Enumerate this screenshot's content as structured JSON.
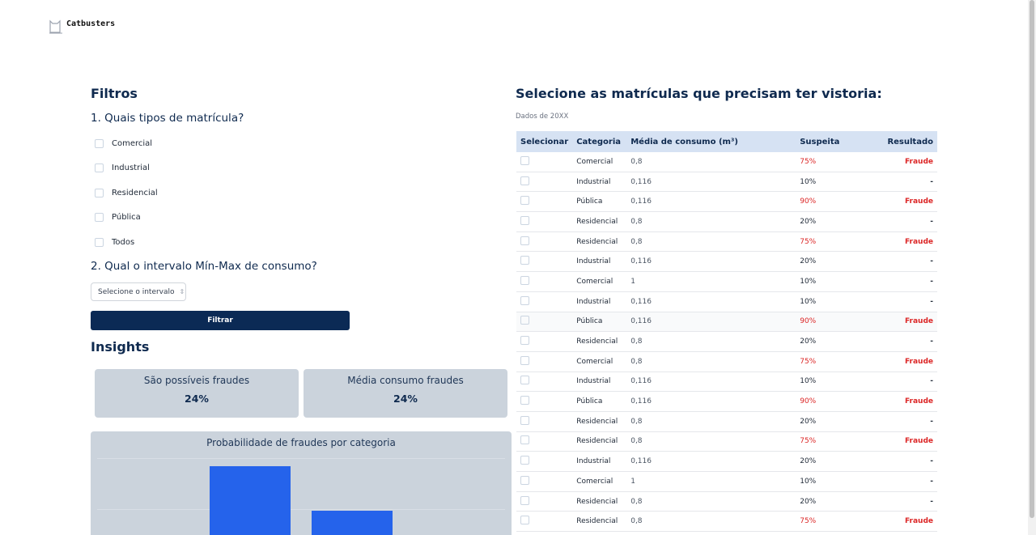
{
  "header": {
    "brand": "Catbusters"
  },
  "filters": {
    "title": "Filtros",
    "question1": "1. Quais tipos de matrícula?",
    "options": [
      "Comercial",
      "Industrial",
      "Residencial",
      "Pública",
      "Todos"
    ],
    "question2": "2. Qual o intervalo Mín-Max de consumo?",
    "select": "Selecione o intervalo",
    "button": "Filtrar"
  },
  "insights": {
    "title": "Insights",
    "cards": [
      {
        "label": "São possíveis fraudes",
        "value": "24%"
      },
      {
        "label": "Média consumo fraudes",
        "value": "24%"
      }
    ],
    "panel_title": "Probabilidade de fraudes por categoria"
  },
  "table": {
    "title": "Selecione as matrículas que precisam ter vistoria:",
    "subtitle": "Dados de 20XX",
    "headers": [
      "Selecionar",
      "Categoria",
      "Média de consumo (m³)",
      "Suspeita",
      "Resultado"
    ],
    "rows": [
      {
        "categoria": "Comercial",
        "media": "0,8",
        "suspeita": "75%",
        "resultado": "Fraude",
        "color": "#dc2626"
      },
      {
        "categoria": "Industrial",
        "media": "0,116",
        "suspeita": "10%",
        "resultado": "-",
        "color": "#1f2937"
      },
      {
        "categoria": "Pública",
        "media": "0,116",
        "suspeita": "90%",
        "resultado": "Fraude",
        "color": "#dc2626"
      },
      {
        "categoria": "Residencial",
        "media": "0,8",
        "suspeita": "20%",
        "resultado": "-",
        "color": "#1f2937"
      },
      {
        "categoria": "Residencial",
        "media": "0,8",
        "suspeita": "75%",
        "resultado": "Fraude",
        "color": "#dc2626"
      },
      {
        "categoria": "Industrial",
        "media": "0,116",
        "suspeita": "20%",
        "resultado": "-",
        "color": "#1f2937"
      },
      {
        "categoria": "Comercial",
        "media": "1",
        "suspeita": "10%",
        "resultado": "-",
        "color": "#1f2937"
      },
      {
        "categoria": "Industrial",
        "media": "0,116",
        "suspeita": "10%",
        "resultado": "-",
        "color": "#1f2937"
      },
      {
        "categoria": "Pública",
        "media": "0,116",
        "suspeita": "90%",
        "resultado": "Fraude",
        "color": "#dc2626"
      },
      {
        "categoria": "Residencial",
        "media": "0,8",
        "suspeita": "20%",
        "resultado": "-",
        "color": "#1f2937"
      },
      {
        "categoria": "Comercial",
        "media": "0,8",
        "suspeita": "75%",
        "resultado": "Fraude",
        "color": "#dc2626"
      },
      {
        "categoria": "Industrial",
        "media": "0,116",
        "suspeita": "10%",
        "resultado": "-",
        "color": "#1f2937"
      },
      {
        "categoria": "Pública",
        "media": "0,116",
        "suspeita": "90%",
        "resultado": "Fraude",
        "color": "#dc2626"
      },
      {
        "categoria": "Residencial",
        "media": "0,8",
        "suspeita": "20%",
        "resultado": "-",
        "color": "#1f2937"
      },
      {
        "categoria": "Residencial",
        "media": "0,8",
        "suspeita": "75%",
        "resultado": "Fraude",
        "color": "#dc2626"
      },
      {
        "categoria": "Industrial",
        "media": "0,116",
        "suspeita": "20%",
        "resultado": "-",
        "color": "#1f2937"
      },
      {
        "categoria": "Comercial",
        "media": "1",
        "suspeita": "10%",
        "resultado": "-",
        "color": "#1f2937"
      },
      {
        "categoria": "Residencial",
        "media": "0,8",
        "suspeita": "20%",
        "resultado": "-",
        "color": "#1f2937"
      },
      {
        "categoria": "Residencial",
        "media": "0,8",
        "suspeita": "75%",
        "resultado": "Fraude",
        "color": "#dc2626"
      }
    ]
  }
}
